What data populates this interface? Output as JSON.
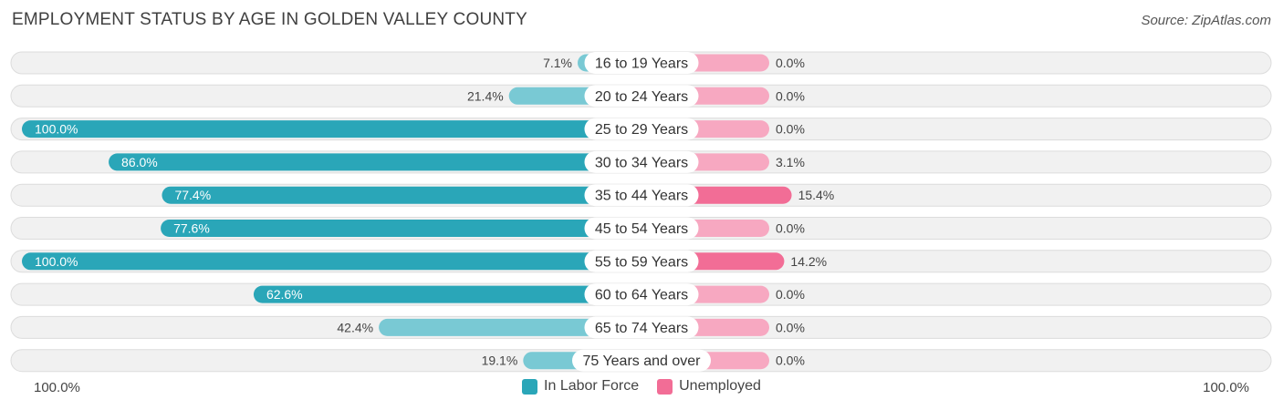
{
  "title": "EMPLOYMENT STATUS BY AGE IN GOLDEN VALLEY COUNTY",
  "source": "Source: ZipAtlas.com",
  "axis": {
    "left_label": "100.0%",
    "right_label": "100.0%"
  },
  "legend": [
    {
      "label": "In Labor Force",
      "color": "#2aa6b8"
    },
    {
      "label": "Unemployed",
      "color": "#f26d96"
    }
  ],
  "colors": {
    "labor_strong": "#2aa6b8",
    "labor_light": "#79c9d4",
    "unemp_strong": "#f26d96",
    "unemp_light": "#f7a8c1",
    "track": "#f1f1f1",
    "track_border": "#dcdcdc"
  },
  "chart_data": {
    "type": "bar",
    "orientation": "diverging-horizontal",
    "title": "EMPLOYMENT STATUS BY AGE IN GOLDEN VALLEY COUNTY",
    "categories": [
      "16 to 19 Years",
      "20 to 24 Years",
      "25 to 29 Years",
      "30 to 34 Years",
      "35 to 44 Years",
      "45 to 54 Years",
      "55 to 59 Years",
      "60 to 64 Years",
      "65 to 74 Years",
      "75 Years and over"
    ],
    "series": [
      {
        "name": "In Labor Force",
        "values": [
          7.1,
          21.4,
          100.0,
          86.0,
          77.4,
          77.6,
          100.0,
          62.6,
          42.4,
          19.1
        ],
        "labels": [
          "7.1%",
          "21.4%",
          "100.0%",
          "86.0%",
          "77.4%",
          "77.6%",
          "100.0%",
          "62.6%",
          "42.4%",
          "19.1%"
        ]
      },
      {
        "name": "Unemployed",
        "values": [
          0.0,
          0.0,
          0.0,
          3.1,
          15.4,
          0.0,
          14.2,
          0.0,
          0.0,
          0.0
        ],
        "labels": [
          "0.0%",
          "0.0%",
          "0.0%",
          "3.1%",
          "15.4%",
          "0.0%",
          "14.2%",
          "0.0%",
          "0.0%",
          "0.0%"
        ]
      }
    ],
    "xlim": [
      0,
      100
    ],
    "legend_position": "bottom-center"
  }
}
